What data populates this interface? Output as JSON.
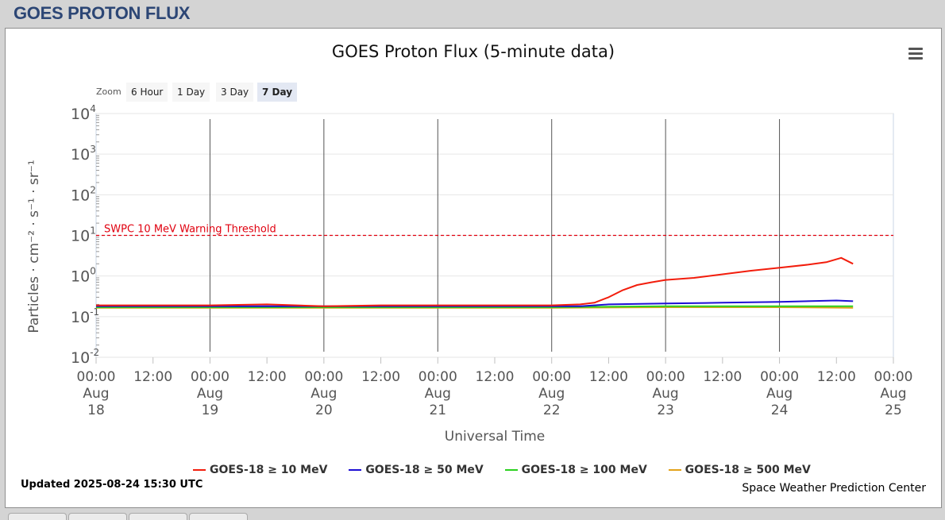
{
  "page": {
    "title": "GOES PROTON FLUX"
  },
  "zoom": {
    "label": "Zoom",
    "buttons": [
      "6 Hour",
      "1 Day",
      "3 Day",
      "7 Day"
    ],
    "active": "7 Day"
  },
  "footer": {
    "updated": "Updated 2025-08-24 15:30 UTC",
    "credit": "Space Weather Prediction Center"
  },
  "chart_data": {
    "type": "line",
    "title": "GOES Proton Flux (5-minute data)",
    "xlabel": "Universal Time",
    "ylabel": "Particles · cm⁻² · s⁻¹ · sr⁻¹",
    "y_scale": "log",
    "ylim": [
      0.01,
      10000
    ],
    "y_ticks": [
      {
        "base": "10",
        "exp": "-2",
        "value": 0.01
      },
      {
        "base": "10",
        "exp": "-1",
        "value": 0.1
      },
      {
        "base": "10",
        "exp": "0",
        "value": 1
      },
      {
        "base": "10",
        "exp": "1",
        "value": 10
      },
      {
        "base": "10",
        "exp": "2",
        "value": 100
      },
      {
        "base": "10",
        "exp": "3",
        "value": 1000
      },
      {
        "base": "10",
        "exp": "4",
        "value": 10000
      }
    ],
    "x_range": [
      "2025-08-18 00:00",
      "2025-08-25 00:00"
    ],
    "x_ticks": [
      {
        "time": "2025-08-18 00:00",
        "lines": [
          "00:00",
          "Aug",
          "18"
        ]
      },
      {
        "time": "2025-08-18 12:00",
        "lines": [
          "12:00"
        ]
      },
      {
        "time": "2025-08-19 00:00",
        "lines": [
          "00:00",
          "Aug",
          "19"
        ]
      },
      {
        "time": "2025-08-19 12:00",
        "lines": [
          "12:00"
        ]
      },
      {
        "time": "2025-08-20 00:00",
        "lines": [
          "00:00",
          "Aug",
          "20"
        ]
      },
      {
        "time": "2025-08-20 12:00",
        "lines": [
          "12:00"
        ]
      },
      {
        "time": "2025-08-21 00:00",
        "lines": [
          "00:00",
          "Aug",
          "21"
        ]
      },
      {
        "time": "2025-08-21 12:00",
        "lines": [
          "12:00"
        ]
      },
      {
        "time": "2025-08-22 00:00",
        "lines": [
          "00:00",
          "Aug",
          "22"
        ]
      },
      {
        "time": "2025-08-22 12:00",
        "lines": [
          "12:00"
        ]
      },
      {
        "time": "2025-08-23 00:00",
        "lines": [
          "00:00",
          "Aug",
          "23"
        ]
      },
      {
        "time": "2025-08-23 12:00",
        "lines": [
          "12:00"
        ]
      },
      {
        "time": "2025-08-24 00:00",
        "lines": [
          "00:00",
          "Aug",
          "24"
        ]
      },
      {
        "time": "2025-08-24 12:00",
        "lines": [
          "12:00"
        ]
      },
      {
        "time": "2025-08-25 00:00",
        "lines": [
          "00:00",
          "Aug",
          "25"
        ]
      }
    ],
    "day_boundaries": [
      "2025-08-19 00:00",
      "2025-08-20 00:00",
      "2025-08-21 00:00",
      "2025-08-22 00:00",
      "2025-08-23 00:00",
      "2025-08-24 00:00"
    ],
    "threshold": {
      "label": "SWPC 10 MeV Warning Threshold",
      "value": 10,
      "color": "#e0000f"
    },
    "grid": true,
    "legend_position": "bottom",
    "series": [
      {
        "name": "GOES-18 ≥ 10 MeV",
        "color": "#f21d0c",
        "x": [
          "2025-08-18 00:00",
          "2025-08-18 12:00",
          "2025-08-19 00:00",
          "2025-08-19 12:00",
          "2025-08-20 00:00",
          "2025-08-20 12:00",
          "2025-08-21 00:00",
          "2025-08-21 12:00",
          "2025-08-22 00:00",
          "2025-08-22 06:00",
          "2025-08-22 09:00",
          "2025-08-22 12:00",
          "2025-08-22 15:00",
          "2025-08-22 18:00",
          "2025-08-22 21:00",
          "2025-08-23 00:00",
          "2025-08-23 06:00",
          "2025-08-23 12:00",
          "2025-08-23 18:00",
          "2025-08-24 00:00",
          "2025-08-24 06:00",
          "2025-08-24 10:00",
          "2025-08-24 13:00",
          "2025-08-24 15:30"
        ],
        "values": [
          0.19,
          0.19,
          0.19,
          0.2,
          0.18,
          0.19,
          0.19,
          0.19,
          0.19,
          0.2,
          0.22,
          0.3,
          0.45,
          0.6,
          0.7,
          0.8,
          0.9,
          1.1,
          1.35,
          1.6,
          1.9,
          2.2,
          2.8,
          2.0
        ]
      },
      {
        "name": "GOES-18 ≥ 50 MeV",
        "color": "#1d0fd4",
        "x": [
          "2025-08-18 00:00",
          "2025-08-22 06:00",
          "2025-08-22 12:00",
          "2025-08-23 00:00",
          "2025-08-23 12:00",
          "2025-08-24 00:00",
          "2025-08-24 12:00",
          "2025-08-24 15:30"
        ],
        "values": [
          0.18,
          0.18,
          0.2,
          0.21,
          0.22,
          0.23,
          0.25,
          0.24
        ]
      },
      {
        "name": "GOES-18 ≥ 100 MeV",
        "color": "#2bd11f",
        "x": [
          "2025-08-18 00:00",
          "2025-08-20 00:00",
          "2025-08-22 00:00",
          "2025-08-23 00:00",
          "2025-08-24 00:00",
          "2025-08-24 15:30"
        ],
        "values": [
          0.17,
          0.17,
          0.17,
          0.18,
          0.18,
          0.18
        ]
      },
      {
        "name": "GOES-18 ≥ 500 MeV",
        "color": "#e3a21a",
        "x": [
          "2025-08-18 00:00",
          "2025-08-20 00:00",
          "2025-08-22 00:00",
          "2025-08-23 00:00",
          "2025-08-24 00:00",
          "2025-08-24 15:30"
        ],
        "values": [
          0.165,
          0.165,
          0.165,
          0.17,
          0.17,
          0.165
        ]
      }
    ]
  }
}
